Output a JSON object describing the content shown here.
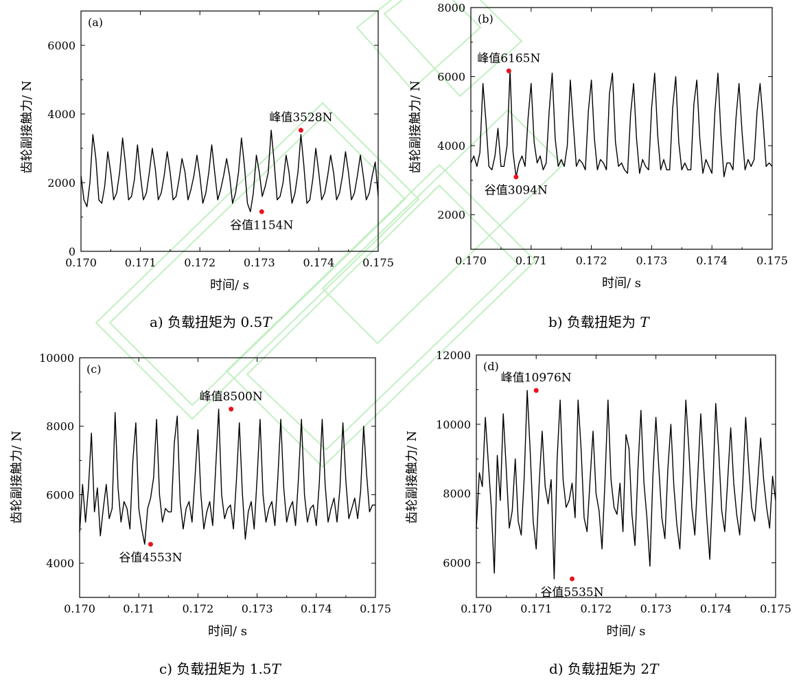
{
  "chart_data": [
    {
      "type": "line",
      "panel_label": "(a)",
      "caption_prefix": "a)  负载扭矩为 ",
      "caption_value": "0.5",
      "caption_var": "T",
      "xlabel": "时间/ s",
      "ylabel": "齿轮副接触力/ N",
      "xlim": [
        0.17,
        0.175
      ],
      "ylim": [
        0,
        7000
      ],
      "xticks": [
        "0.170",
        "0.171",
        "0.172",
        "0.173",
        "0.174",
        "0.175"
      ],
      "yticks": [
        "0",
        "2000",
        "4000",
        "6000"
      ],
      "ytick_values": [
        0,
        2000,
        4000,
        6000
      ],
      "series": [
        {
          "line_color": "#000000",
          "x": [
            0.17,
            0.17005,
            0.1701,
            0.17015,
            0.1702,
            0.17025,
            0.1703,
            0.17035,
            0.1704,
            0.17045,
            0.1705,
            0.17055,
            0.1706,
            0.17065,
            0.1707,
            0.17075,
            0.1708,
            0.17085,
            0.1709,
            0.17095,
            0.171,
            0.17105,
            0.1711,
            0.17115,
            0.1712,
            0.17125,
            0.1713,
            0.17135,
            0.1714,
            0.17145,
            0.1715,
            0.17155,
            0.1716,
            0.17165,
            0.1717,
            0.17175,
            0.1718,
            0.17185,
            0.1719,
            0.17195,
            0.172,
            0.17205,
            0.1721,
            0.17215,
            0.1722,
            0.17225,
            0.1723,
            0.17235,
            0.1724,
            0.17245,
            0.1725,
            0.17255,
            0.1726,
            0.17265,
            0.1727,
            0.17275,
            0.1728,
            0.17285,
            0.1729,
            0.17295,
            0.173,
            0.17305,
            0.1731,
            0.17315,
            0.1732,
            0.17325,
            0.1733,
            0.17335,
            0.1734,
            0.17345,
            0.1735,
            0.17355,
            0.1736,
            0.17365,
            0.1737,
            0.17375,
            0.1738,
            0.17385,
            0.1739,
            0.17395,
            0.174,
            0.17405,
            0.1741,
            0.17415,
            0.1742,
            0.17425,
            0.1743,
            0.17435,
            0.1744,
            0.17445,
            0.1745,
            0.17455,
            0.1746,
            0.17465,
            0.1747,
            0.17475,
            0.1748,
            0.17485,
            0.1749,
            0.17495,
            0.175
          ],
          "y": [
            2200,
            1500,
            1300,
            2000,
            3400,
            2700,
            1500,
            1400,
            1900,
            2900,
            2300,
            1500,
            1700,
            2300,
            3300,
            2500,
            1500,
            1600,
            2100,
            3100,
            2200,
            1500,
            1700,
            2300,
            3000,
            2400,
            1500,
            1700,
            2200,
            2900,
            2300,
            1500,
            1600,
            2100,
            2700,
            2300,
            1500,
            1800,
            2200,
            2800,
            2200,
            1400,
            1700,
            2300,
            3100,
            2300,
            1500,
            1800,
            2200,
            2700,
            2200,
            1400,
            1700,
            2300,
            3300,
            2500,
            1400,
            1154,
            1700,
            2800,
            2300,
            1600,
            1900,
            2300,
            3528,
            2600,
            1500,
            1600,
            2000,
            2800,
            2300,
            1400,
            1700,
            2300,
            3400,
            2500,
            1400,
            1500,
            2100,
            3000,
            2300,
            1500,
            1700,
            2200,
            2800,
            2300,
            1500,
            1700,
            2200,
            2900,
            2300,
            1500,
            1700,
            2200,
            2800,
            2200,
            1500,
            1700,
            2200,
            2600,
            1600
          ]
        }
      ],
      "annotations": [
        {
          "text": "峰值3528N",
          "x": 0.1737,
          "y": 3528,
          "color": "#e8141e"
        },
        {
          "text": "谷值1154N",
          "x": 0.17304,
          "y": 1154,
          "color": "#e8141e"
        }
      ]
    },
    {
      "type": "line",
      "panel_label": "(b)",
      "caption_prefix": "b)  负载扭矩为 ",
      "caption_value": "",
      "caption_var": "T",
      "xlabel": "时间/ s",
      "ylabel": "齿轮副接触力/ N",
      "xlim": [
        0.17,
        0.175
      ],
      "ylim": [
        1000,
        8000
      ],
      "xticks": [
        "0.170",
        "0.171",
        "0.172",
        "0.173",
        "0.174",
        "0.175"
      ],
      "yticks": [
        "2000",
        "4000",
        "6000",
        "8000"
      ],
      "ytick_values": [
        2000,
        4000,
        6000,
        8000
      ],
      "series": [
        {
          "line_color": "#000000",
          "x": [
            0.17,
            0.17005,
            0.1701,
            0.17015,
            0.1702,
            0.17025,
            0.1703,
            0.17035,
            0.1704,
            0.17045,
            0.1705,
            0.17055,
            0.1706,
            0.17065,
            0.1707,
            0.17075,
            0.1708,
            0.17085,
            0.1709,
            0.17095,
            0.171,
            0.17105,
            0.1711,
            0.17115,
            0.1712,
            0.17125,
            0.1713,
            0.17135,
            0.1714,
            0.17145,
            0.1715,
            0.17155,
            0.1716,
            0.17165,
            0.1717,
            0.17175,
            0.1718,
            0.17185,
            0.1719,
            0.17195,
            0.172,
            0.17205,
            0.1721,
            0.17215,
            0.1722,
            0.17225,
            0.1723,
            0.17235,
            0.1724,
            0.17245,
            0.1725,
            0.17255,
            0.1726,
            0.17265,
            0.1727,
            0.17275,
            0.1728,
            0.17285,
            0.1729,
            0.17295,
            0.173,
            0.17305,
            0.1731,
            0.17315,
            0.1732,
            0.17325,
            0.1733,
            0.17335,
            0.1734,
            0.17345,
            0.1735,
            0.17355,
            0.1736,
            0.17365,
            0.1737,
            0.17375,
            0.1738,
            0.17385,
            0.1739,
            0.17395,
            0.174,
            0.17405,
            0.1741,
            0.17415,
            0.1742,
            0.17425,
            0.1743,
            0.17435,
            0.1744,
            0.17445,
            0.1745,
            0.17455,
            0.1746,
            0.17465,
            0.1747,
            0.17475,
            0.1748,
            0.17485,
            0.1749,
            0.17495,
            0.175
          ],
          "y": [
            3500,
            3700,
            3400,
            3800,
            5800,
            4700,
            3400,
            3300,
            3700,
            4500,
            3400,
            3400,
            4000,
            6165,
            3800,
            3094,
            3500,
            3700,
            3400,
            4800,
            5800,
            4100,
            3500,
            3700,
            3300,
            3500,
            5000,
            6100,
            4200,
            3400,
            3600,
            3400,
            4000,
            5900,
            4600,
            3400,
            3600,
            3500,
            3300,
            5000,
            5900,
            4200,
            3300,
            3600,
            3500,
            3300,
            5500,
            6100,
            4100,
            3400,
            3500,
            3300,
            3200,
            4900,
            5800,
            4200,
            3200,
            3600,
            3400,
            3300,
            5100,
            6100,
            4300,
            3300,
            3600,
            3300,
            3300,
            5100,
            6000,
            4100,
            3300,
            3500,
            3300,
            3300,
            5200,
            5900,
            4200,
            3200,
            3600,
            3400,
            3200,
            5000,
            6100,
            4300,
            3100,
            3500,
            3500,
            3300,
            4800,
            5800,
            4400,
            3300,
            3600,
            3400,
            3600,
            5000,
            5800,
            4700,
            3400,
            3500,
            3400
          ]
        }
      ],
      "annotations": [
        {
          "text": "峰值6165N",
          "x": 0.17063,
          "y": 6165,
          "color": "#e8141e"
        },
        {
          "text": "谷值3094N",
          "x": 0.17075,
          "y": 3094,
          "color": "#e8141e"
        }
      ]
    },
    {
      "type": "line",
      "panel_label": "(c)",
      "caption_prefix": "c)  负载扭矩为 ",
      "caption_value": "1.5",
      "caption_var": "T",
      "xlabel": "时间/ s",
      "ylabel": "齿轮副接触力/ N",
      "xlim": [
        0.17,
        0.175
      ],
      "ylim": [
        3000,
        10000
      ],
      "xticks": [
        "0.170",
        "0.171",
        "0.172",
        "0.173",
        "0.174",
        "0.175"
      ],
      "yticks": [
        "4000",
        "6000",
        "8000",
        "10000"
      ],
      "ytick_values": [
        4000,
        6000,
        8000,
        10000
      ],
      "series": [
        {
          "line_color": "#000000",
          "x": [
            0.17,
            0.17005,
            0.1701,
            0.17015,
            0.1702,
            0.17025,
            0.1703,
            0.17035,
            0.1704,
            0.17045,
            0.1705,
            0.17055,
            0.1706,
            0.17065,
            0.1707,
            0.17075,
            0.1708,
            0.17085,
            0.1709,
            0.17095,
            0.171,
            0.17105,
            0.1711,
            0.17115,
            0.1712,
            0.17125,
            0.1713,
            0.17135,
            0.1714,
            0.17145,
            0.1715,
            0.17155,
            0.1716,
            0.17165,
            0.1717,
            0.17175,
            0.1718,
            0.17185,
            0.1719,
            0.17195,
            0.172,
            0.17205,
            0.1721,
            0.17215,
            0.1722,
            0.17225,
            0.1723,
            0.17235,
            0.1724,
            0.17245,
            0.1725,
            0.17255,
            0.1726,
            0.17265,
            0.1727,
            0.17275,
            0.1728,
            0.17285,
            0.1729,
            0.17295,
            0.173,
            0.17305,
            0.1731,
            0.17315,
            0.1732,
            0.17325,
            0.1733,
            0.17335,
            0.1734,
            0.17345,
            0.1735,
            0.17355,
            0.1736,
            0.17365,
            0.1737,
            0.17375,
            0.1738,
            0.17385,
            0.1739,
            0.17395,
            0.174,
            0.17405,
            0.1741,
            0.17415,
            0.1742,
            0.17425,
            0.1743,
            0.17435,
            0.1744,
            0.17445,
            0.1745,
            0.17455,
            0.1746,
            0.17465,
            0.1747,
            0.17475,
            0.1748,
            0.17485,
            0.1749,
            0.17495,
            0.175
          ],
          "y": [
            4900,
            6300,
            5200,
            6200,
            7800,
            5500,
            6200,
            4800,
            5600,
            6300,
            5300,
            5600,
            8400,
            6200,
            5200,
            5800,
            5600,
            5000,
            7000,
            8100,
            5600,
            5000,
            4553,
            5600,
            5900,
            6500,
            8200,
            6000,
            5200,
            5600,
            5500,
            5500,
            7500,
            8300,
            5800,
            5000,
            5600,
            5800,
            5200,
            6500,
            7900,
            6000,
            5000,
            5500,
            5800,
            5100,
            6800,
            8500,
            6000,
            5300,
            5600,
            5700,
            5000,
            6400,
            8100,
            6100,
            4700,
            5500,
            5800,
            5000,
            6500,
            8200,
            6000,
            5200,
            5600,
            5800,
            5100,
            6500,
            8200,
            6200,
            5200,
            5600,
            5800,
            5100,
            6500,
            8200,
            6000,
            5200,
            5600,
            5700,
            5100,
            6300,
            8200,
            6300,
            5200,
            5600,
            5900,
            5200,
            6200,
            8100,
            6400,
            5300,
            5600,
            5900,
            5300,
            6100,
            8000,
            6600,
            5500,
            5700,
            5700
          ]
        }
      ],
      "annotations": [
        {
          "text": "峰值8500N",
          "x": 0.17256,
          "y": 8500,
          "color": "#e8141e"
        },
        {
          "text": "谷值4553N",
          "x": 0.1712,
          "y": 4553,
          "color": "#e8141e"
        }
      ]
    },
    {
      "type": "line",
      "panel_label": "(d)",
      "caption_prefix": "d)  负载扭矩为 ",
      "caption_value": "2",
      "caption_var": "T",
      "xlabel": "时间/ s",
      "ylabel": "齿轮副接触力/ N",
      "xlim": [
        0.17,
        0.175
      ],
      "ylim": [
        5000,
        12000
      ],
      "xticks": [
        "0.170",
        "0.171",
        "0.172",
        "0.173",
        "0.174",
        "0.175"
      ],
      "yticks": [
        "6000",
        "8000",
        "10000",
        "12000"
      ],
      "ytick_values": [
        6000,
        8000,
        10000,
        12000
      ],
      "series": [
        {
          "line_color": "#000000",
          "x": [
            0.17,
            0.17005,
            0.1701,
            0.17015,
            0.1702,
            0.17025,
            0.1703,
            0.17035,
            0.1704,
            0.17045,
            0.1705,
            0.17055,
            0.1706,
            0.17065,
            0.1707,
            0.17075,
            0.1708,
            0.17085,
            0.1709,
            0.17095,
            0.171,
            0.17105,
            0.1711,
            0.17115,
            0.1712,
            0.17125,
            0.1713,
            0.17135,
            0.1714,
            0.17145,
            0.1715,
            0.17155,
            0.1716,
            0.17165,
            0.1717,
            0.17175,
            0.1718,
            0.17185,
            0.1719,
            0.17195,
            0.172,
            0.17205,
            0.1721,
            0.17215,
            0.1722,
            0.17225,
            0.1723,
            0.17235,
            0.1724,
            0.17245,
            0.1725,
            0.17255,
            0.1726,
            0.17265,
            0.1727,
            0.17275,
            0.1728,
            0.17285,
            0.1729,
            0.17295,
            0.173,
            0.17305,
            0.1731,
            0.17315,
            0.1732,
            0.17325,
            0.1733,
            0.17335,
            0.1734,
            0.17345,
            0.1735,
            0.17355,
            0.1736,
            0.17365,
            0.1737,
            0.17375,
            0.1738,
            0.17385,
            0.1739,
            0.17395,
            0.174,
            0.17405,
            0.1741,
            0.17415,
            0.1742,
            0.17425,
            0.1743,
            0.17435,
            0.1744,
            0.17445,
            0.1745,
            0.17455,
            0.1746,
            0.17465,
            0.1747,
            0.17475,
            0.1748,
            0.17485,
            0.1749,
            0.17495,
            0.175
          ],
          "y": [
            7000,
            8600,
            8200,
            10200,
            8900,
            7600,
            5700,
            9100,
            7800,
            10300,
            8700,
            7000,
            7500,
            9000,
            7200,
            6800,
            8500,
            10976,
            9200,
            7200,
            6400,
            8300,
            9800,
            8200,
            7700,
            8400,
            5535,
            9000,
            10700,
            8400,
            7600,
            7800,
            8300,
            7300,
            10700,
            9300,
            7300,
            6900,
            8400,
            9800,
            8000,
            7500,
            6400,
            8400,
            10700,
            8400,
            7600,
            7400,
            8300,
            6900,
            9700,
            9300,
            7400,
            6500,
            8700,
            10400,
            8300,
            7300,
            5900,
            8500,
            10200,
            8700,
            7300,
            6700,
            8700,
            10000,
            8200,
            7100,
            6400,
            8300,
            10700,
            9300,
            7600,
            6800,
            8500,
            10300,
            8700,
            7300,
            6100,
            8100,
            10600,
            9200,
            7500,
            6900,
            8400,
            9900,
            8300,
            7400,
            6800,
            8200,
            10200,
            8800,
            7600,
            7200,
            8300,
            9600,
            8400,
            7600,
            7000,
            8500,
            7800
          ]
        }
      ],
      "annotations": [
        {
          "text": "峰值10976N",
          "x": 0.171,
          "y": 10976,
          "color": "#e8141e"
        },
        {
          "text": "谷值5535N",
          "x": 0.1716,
          "y": 5535,
          "color": "#e8141e"
        }
      ]
    }
  ]
}
